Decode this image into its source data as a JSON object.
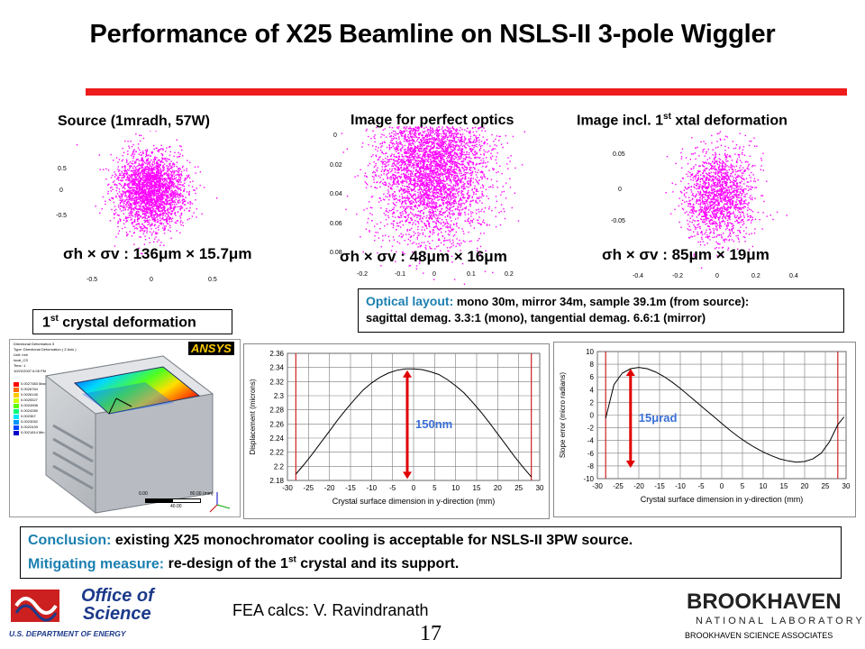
{
  "title": "Performance of X25 Beamline on NSLS-II 3-pole Wiggler",
  "scatter_labels": {
    "source": "Source (1mradh, 57W)",
    "perfect": "Image for perfect optics",
    "deform_prefix": "Image incl. 1",
    "deform_sup": "st",
    "deform_suffix": " xtal deformation"
  },
  "sigma_labels": {
    "source": "σh × σv : 136μm × 15.7μm",
    "perfect": "σh × σv : 48μm × 16μm",
    "deform": "σh × σv : 85μm × 19μm"
  },
  "scatter_axes": {
    "source_y": [
      "0.5",
      "0",
      "-0.5"
    ],
    "source_x": [
      "-0.5",
      "0",
      "0.5"
    ],
    "perfect_y": [
      "0",
      "0.02",
      "0.04",
      "0.06",
      "0.08"
    ],
    "perfect_x": [
      "-0.2",
      "-0.1",
      "0",
      "0.1",
      "0.2"
    ],
    "deform_y": [
      "0.05",
      "0",
      "-0.05"
    ],
    "deform_x": [
      "-0.4",
      "-0.2",
      "0",
      "0.2",
      "0.4"
    ]
  },
  "optical": {
    "label": "Optical layout:",
    "line1": " mono 30m, mirror 34m, sample 39.1m (from source):",
    "line2": "sagittal demag. 3.3:1 (mono), tangential  demag.  6.6:1 (mirror)"
  },
  "crystal_box": {
    "prefix": "1",
    "sup": "st",
    "suffix": " crystal deformation"
  },
  "fea": {
    "logo": "ANSYS",
    "header": [
      "Directional Deformation 3",
      "Type: Directional Deformation ( Z Axis )",
      "Unit: mm",
      "local_CS",
      "Time: 1",
      "10/22/2007 6:05 PM"
    ],
    "legend": [
      "0.0027383 Max",
      "0.0026764",
      "0.0026145",
      "0.0025527",
      "0.0024908",
      "0.0024289",
      "0.002367",
      "0.0023052",
      "0.0022433",
      "0.0021814 Min"
    ],
    "legend_colors": [
      "#ff0000",
      "#ff6a00",
      "#ffc800",
      "#d2ff00",
      "#5aff00",
      "#00ff78",
      "#00e6ff",
      "#0096ff",
      "#0046ff",
      "#0000c8"
    ],
    "scale": [
      "0.00",
      "40.00",
      "80.00 (mm)"
    ]
  },
  "chart_data": [
    {
      "type": "line",
      "xlabel": "Crystal surface dimension in y-direction (mm)",
      "ylabel": "Displacement (microns)",
      "xlim": [
        -30,
        30
      ],
      "ylim": [
        2.18,
        2.36
      ],
      "xticks": [
        -30,
        -25,
        -20,
        -15,
        -10,
        -5,
        0,
        5,
        10,
        15,
        20,
        25,
        30
      ],
      "yticks": [
        2.18,
        2.2,
        2.22,
        2.24,
        2.26,
        2.28,
        2.3,
        2.32,
        2.34,
        2.36
      ],
      "ytick_labels": [
        "2.18",
        "2.2",
        "2.22",
        "2.24",
        "2.26",
        "2.28",
        "2.3",
        "2.32",
        "2.34",
        "2.36"
      ],
      "series": [
        {
          "x": [
            -28,
            -26,
            -24,
            -22,
            -20,
            -18,
            -16,
            -14,
            -12,
            -10,
            -8,
            -6,
            -4,
            -2,
            0,
            2,
            4,
            6,
            8,
            10,
            12,
            14,
            16,
            18,
            20,
            22,
            24,
            26,
            28
          ],
          "values": [
            2.189,
            2.203,
            2.218,
            2.234,
            2.25,
            2.266,
            2.281,
            2.295,
            2.308,
            2.318,
            2.326,
            2.332,
            2.336,
            2.338,
            2.338,
            2.337,
            2.334,
            2.33,
            2.323,
            2.314,
            2.304,
            2.291,
            2.277,
            2.262,
            2.246,
            2.23,
            2.214,
            2.199,
            2.185
          ]
        }
      ],
      "annotation": "150nm",
      "arrow_x": -1.5,
      "arrow_range": [
        2.182,
        2.336
      ],
      "redlines_x": [
        -28,
        28
      ]
    },
    {
      "type": "line",
      "xlabel": "Crystal surface dimension in y-direction (mm)",
      "ylabel": "Slope error (micro radians)",
      "xlim": [
        -30,
        30
      ],
      "ylim": [
        -10,
        10
      ],
      "xticks": [
        -30,
        -25,
        -20,
        -15,
        -10,
        -5,
        0,
        5,
        10,
        15,
        20,
        25,
        30
      ],
      "yticks": [
        -10,
        -8,
        -6,
        -4,
        -2,
        0,
        2,
        4,
        6,
        8,
        10
      ],
      "ytick_labels": [
        "-10",
        "-8",
        "-6",
        "-4",
        "-2",
        "0",
        "2",
        "4",
        "6",
        "8",
        "10"
      ],
      "series": [
        {
          "x": [
            -28,
            -26,
            -24,
            -22,
            -20,
            -18,
            -16,
            -14,
            -12,
            -10,
            -8,
            -6,
            -4,
            -2,
            0,
            2,
            4,
            6,
            8,
            10,
            12,
            14,
            16,
            18,
            20,
            22,
            24,
            26,
            28,
            29.5
          ],
          "values": [
            -0.5,
            4.8,
            6.6,
            7.3,
            7.5,
            7.3,
            6.8,
            6.1,
            5.2,
            4.2,
            3.1,
            2.0,
            0.9,
            -0.2,
            -1.3,
            -2.4,
            -3.4,
            -4.3,
            -5.1,
            -5.8,
            -6.4,
            -6.9,
            -7.2,
            -7.4,
            -7.3,
            -6.9,
            -6.0,
            -4.2,
            -1.5,
            -0.3
          ]
        }
      ],
      "annotation": "15μrad",
      "arrow_x": -22,
      "arrow_range": [
        -8.3,
        7.3
      ],
      "redlines_x": [
        -28,
        28
      ]
    }
  ],
  "conclusion": {
    "label1": "Conclusion:",
    "text1": "  existing X25 monochromator cooling is acceptable for NSLS-II 3PW source.",
    "label2": "Mitigating measure:",
    "text2_a": "  re-design of the 1",
    "text2_sup": "st",
    "text2_b": " crystal and its support."
  },
  "footer": {
    "doe_line1": "Office of",
    "doe_line2": "Science",
    "doe_line3": "U.S. DEPARTMENT OF ENERGY",
    "fea_credit": "FEA calcs: V. Ravindranath",
    "page_number": "17",
    "bnl_name": "BROOKHAVEN",
    "bnl_sub": "NATIONAL LABORATORY",
    "bnl_assoc": "BROOKHAVEN SCIENCE ASSOCIATES"
  },
  "colors": {
    "accent_red": "#ee1c1c",
    "magenta": "#ff00ff",
    "teal": "#1a7fb0",
    "doe_blue": "#1c3a8a"
  }
}
